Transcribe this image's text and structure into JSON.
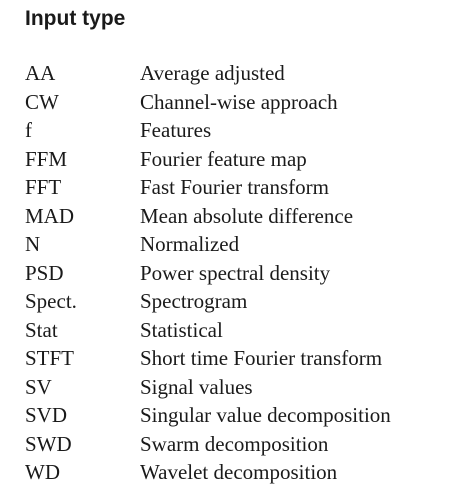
{
  "heading": "Input type",
  "entries": [
    {
      "abbr": "AA",
      "meaning": "Average adjusted"
    },
    {
      "abbr": "CW",
      "meaning": "Channel-wise approach"
    },
    {
      "abbr": "f",
      "meaning": "Features"
    },
    {
      "abbr": "FFM",
      "meaning": "Fourier feature map"
    },
    {
      "abbr": "FFT",
      "meaning": "Fast Fourier transform"
    },
    {
      "abbr": "MAD",
      "meaning": "Mean absolute difference"
    },
    {
      "abbr": "N",
      "meaning": "Normalized"
    },
    {
      "abbr": "PSD",
      "meaning": "Power spectral density"
    },
    {
      "abbr": "Spect.",
      "meaning": "Spectrogram"
    },
    {
      "abbr": "Stat",
      "meaning": "Statistical"
    },
    {
      "abbr": "STFT",
      "meaning": "Short time Fourier transform"
    },
    {
      "abbr": "SV",
      "meaning": "Signal values"
    },
    {
      "abbr": "SVD",
      "meaning": "Singular value decomposition"
    },
    {
      "abbr": "SWD",
      "meaning": "Swarm decomposition"
    },
    {
      "abbr": "WD",
      "meaning": "Wavelet decomposition"
    }
  ]
}
